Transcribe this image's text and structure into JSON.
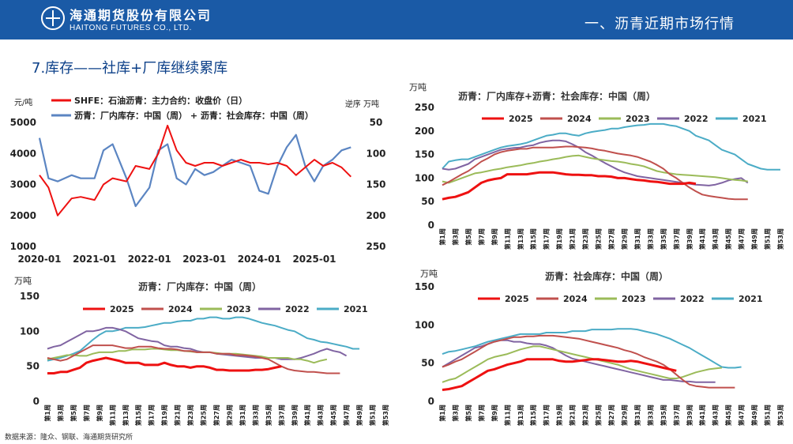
{
  "header": {
    "brand_cn": "海通期货股份有限公司",
    "brand_en": "HAITONG FUTURES CO., LTD.",
    "title": "一、沥青近期市场行情"
  },
  "section_title": "7.库存——社库+厂库继续累库",
  "source": "数据来源：隆众、钢联、海通期货研究所",
  "colors": {
    "y2025": "#ee1111",
    "y2024": "#c0504d",
    "y2023": "#9bbb59",
    "y2022": "#8064a2",
    "y2021": "#4bacc6",
    "shfe": "#ee1111",
    "inventory": "#5b85c2"
  },
  "week_ticks": [
    "第1周",
    "第3周",
    "第5周",
    "第7周",
    "第9周",
    "第11周",
    "第13周",
    "第15周",
    "第17周",
    "第19周",
    "第21周",
    "第23周",
    "第25周",
    "第27周",
    "第29周",
    "第31周",
    "第33周",
    "第35周",
    "第37周",
    "第39周",
    "第41周",
    "第43周",
    "第45周",
    "第47周",
    "第49周",
    "第51周",
    "第53周"
  ],
  "chart_data": [
    {
      "type": "line",
      "left_unit": "元/吨",
      "right_unit": "逆序 万吨",
      "series": [
        {
          "name": "SHFE：石油沥青：主力合约：收盘价（日）",
          "axis": "left",
          "x": [
            "2020-01",
            "2020-03",
            "2020-05",
            "2020-08",
            "2020-10",
            "2021-01",
            "2021-03",
            "2021-05",
            "2021-08",
            "2021-10",
            "2022-01",
            "2022-03",
            "2022-05",
            "2022-07",
            "2022-09",
            "2022-11",
            "2023-01",
            "2023-03",
            "2023-05",
            "2023-07",
            "2023-09",
            "2023-11",
            "2024-01",
            "2024-03",
            "2024-05",
            "2024-07",
            "2024-09",
            "2024-11",
            "2025-01",
            "2025-03",
            "2025-05",
            "2025-07",
            "2025-09"
          ],
          "values": [
            3300,
            2900,
            2000,
            2550,
            2600,
            2500,
            3000,
            3200,
            3100,
            3600,
            3500,
            4000,
            4900,
            4100,
            3700,
            3600,
            3700,
            3700,
            3600,
            3700,
            3800,
            3700,
            3700,
            3650,
            3700,
            3600,
            3300,
            3550,
            3800,
            3600,
            3700,
            3550,
            3250
          ]
        },
        {
          "name": "沥青：厂内库存：中国（周） + 沥青：社会库存：中国（周）",
          "axis": "right",
          "x": [
            "2020-01",
            "2020-03",
            "2020-05",
            "2020-08",
            "2020-10",
            "2021-01",
            "2021-03",
            "2021-05",
            "2021-08",
            "2021-10",
            "2022-01",
            "2022-03",
            "2022-05",
            "2022-07",
            "2022-09",
            "2022-11",
            "2023-01",
            "2023-03",
            "2023-05",
            "2023-07",
            "2023-09",
            "2023-11",
            "2024-01",
            "2024-03",
            "2024-05",
            "2024-07",
            "2024-09",
            "2024-11",
            "2025-01",
            "2025-03",
            "2025-05",
            "2025-07",
            "2025-09"
          ],
          "values": [
            75,
            140,
            145,
            135,
            140,
            140,
            95,
            85,
            140,
            185,
            155,
            95,
            85,
            140,
            150,
            125,
            135,
            130,
            120,
            110,
            115,
            120,
            160,
            165,
            120,
            90,
            70,
            120,
            145,
            120,
            110,
            95,
            90
          ]
        }
      ],
      "y_left": {
        "ticks": [
          1000,
          2000,
          3000,
          4000,
          5000
        ]
      },
      "y_right": {
        "ticks": [
          50,
          100,
          150,
          200,
          250
        ],
        "reversed": true
      },
      "x_ticks": [
        "2020-01",
        "2021-01",
        "2022-01",
        "2023-01",
        "2024-01",
        "2025-01"
      ]
    },
    {
      "type": "line",
      "title": "沥青：厂内库存+沥青：社会库存：中国（周）",
      "unit": "万吨",
      "y_ticks": [
        0,
        50,
        100,
        150,
        200,
        250
      ],
      "series": [
        {
          "name": "2025",
          "values": [
            55,
            58,
            60,
            65,
            70,
            80,
            90,
            95,
            98,
            100,
            108,
            108,
            108,
            108,
            110,
            112,
            112,
            112,
            110,
            108,
            107,
            107,
            106,
            106,
            104,
            104,
            103,
            100,
            100,
            98,
            96,
            95,
            93,
            92,
            90,
            88,
            88,
            88,
            90,
            88
          ]
        },
        {
          "name": "2024",
          "values": [
            85,
            92,
            100,
            108,
            115,
            125,
            135,
            142,
            150,
            155,
            158,
            160,
            162,
            162,
            165,
            165,
            165,
            165,
            166,
            167,
            167,
            166,
            165,
            163,
            160,
            158,
            155,
            152,
            150,
            148,
            145,
            140,
            135,
            128,
            120,
            108,
            100,
            90,
            80,
            72,
            65,
            62,
            60,
            58,
            56,
            55,
            55,
            55
          ]
        },
        {
          "name": "2023",
          "values": [
            93,
            90,
            95,
            100,
            105,
            110,
            112,
            115,
            118,
            120,
            123,
            125,
            127,
            130,
            132,
            135,
            137,
            140,
            142,
            145,
            147,
            148,
            145,
            142,
            140,
            138,
            136,
            135,
            133,
            130,
            128,
            125,
            120,
            115,
            112,
            110,
            108,
            107,
            106,
            105,
            104,
            103,
            102,
            100,
            98,
            96,
            95,
            93
          ]
        },
        {
          "name": "2022",
          "values": [
            120,
            118,
            120,
            125,
            130,
            140,
            145,
            150,
            155,
            160,
            162,
            164,
            165,
            168,
            170,
            175,
            178,
            180,
            180,
            178,
            172,
            165,
            155,
            148,
            140,
            132,
            125,
            118,
            112,
            108,
            104,
            102,
            100,
            98,
            96,
            94,
            92,
            90,
            88,
            86,
            85,
            84,
            86,
            90,
            95,
            98,
            100,
            90
          ]
        },
        {
          "name": "2021",
          "values": [
            120,
            135,
            138,
            140,
            140,
            145,
            150,
            155,
            160,
            165,
            168,
            170,
            172,
            175,
            180,
            185,
            190,
            192,
            195,
            195,
            192,
            190,
            195,
            198,
            200,
            202,
            205,
            205,
            208,
            210,
            212,
            213,
            215,
            215,
            215,
            212,
            210,
            205,
            200,
            190,
            185,
            180,
            170,
            160,
            155,
            150,
            140,
            130,
            125,
            120,
            118,
            118,
            118
          ]
        }
      ]
    },
    {
      "type": "line",
      "title": "沥青：厂内库存：中国（周）",
      "unit": "万吨",
      "y_ticks": [
        0,
        50,
        100,
        150
      ],
      "series": [
        {
          "name": "2025",
          "values": [
            40,
            40,
            42,
            42,
            45,
            48,
            55,
            58,
            60,
            62,
            60,
            58,
            55,
            55,
            55,
            52,
            52,
            52,
            55,
            52,
            50,
            50,
            48,
            50,
            50,
            48,
            45,
            45,
            44,
            44,
            44,
            44,
            45,
            45,
            46,
            48,
            50
          ]
        },
        {
          "name": "2024",
          "values": [
            62,
            60,
            58,
            60,
            65,
            70,
            75,
            80,
            80,
            80,
            80,
            78,
            76,
            76,
            78,
            78,
            78,
            76,
            75,
            75,
            74,
            72,
            72,
            70,
            70,
            70,
            68,
            68,
            68,
            66,
            66,
            65,
            64,
            62,
            60,
            55,
            50,
            46,
            44,
            43,
            42,
            42,
            41,
            40,
            40,
            40
          ]
        },
        {
          "name": "2023",
          "values": [
            60,
            62,
            64,
            66,
            66,
            65,
            65,
            68,
            70,
            70,
            70,
            72,
            72,
            74,
            74,
            74,
            75,
            75,
            74,
            73,
            73,
            72,
            71,
            70,
            70,
            70,
            69,
            68,
            68,
            68,
            67,
            66,
            65,
            64,
            62,
            62,
            62,
            62,
            60,
            60,
            58,
            55,
            58,
            60
          ]
        },
        {
          "name": "2022",
          "values": [
            75,
            78,
            80,
            85,
            90,
            95,
            100,
            100,
            102,
            105,
            105,
            103,
            100,
            95,
            90,
            88,
            86,
            85,
            80,
            78,
            78,
            76,
            75,
            72,
            70,
            70,
            68,
            67,
            66,
            65,
            64,
            63,
            62,
            62,
            62,
            62,
            60,
            60,
            60,
            62,
            65,
            68,
            72,
            75,
            72,
            70,
            65
          ]
        },
        {
          "name": "2021",
          "values": [
            58,
            60,
            62,
            65,
            68,
            72,
            80,
            88,
            95,
            100,
            100,
            102,
            105,
            105,
            105,
            106,
            108,
            110,
            112,
            112,
            114,
            115,
            115,
            118,
            118,
            120,
            120,
            118,
            118,
            120,
            120,
            118,
            115,
            112,
            110,
            108,
            105,
            102,
            100,
            95,
            90,
            88,
            85,
            84,
            82,
            80,
            78,
            75,
            75
          ]
        }
      ]
    },
    {
      "type": "line",
      "title": "沥青：社会库存：中国（周）",
      "unit": "万吨",
      "y_ticks": [
        0,
        50,
        100,
        150
      ],
      "series": [
        {
          "name": "2025",
          "values": [
            15,
            16,
            18,
            20,
            25,
            30,
            35,
            40,
            42,
            45,
            48,
            50,
            52,
            55,
            55,
            55,
            55,
            55,
            53,
            52,
            52,
            53,
            54,
            55,
            55,
            54,
            53,
            52,
            52,
            53,
            52,
            50,
            48,
            46,
            44,
            42,
            40
          ]
        },
        {
          "name": "2024",
          "values": [
            45,
            48,
            52,
            55,
            60,
            65,
            70,
            75,
            78,
            80,
            82,
            84,
            84,
            85,
            85,
            86,
            86,
            86,
            85,
            84,
            83,
            82,
            80,
            78,
            76,
            74,
            72,
            70,
            67,
            65,
            62,
            58,
            55,
            52,
            48,
            42,
            35,
            28,
            22,
            20,
            19,
            18,
            18,
            18,
            18,
            18
          ]
        },
        {
          "name": "2023",
          "values": [
            25,
            28,
            30,
            35,
            40,
            45,
            50,
            55,
            58,
            60,
            62,
            65,
            68,
            70,
            72,
            72,
            70,
            68,
            66,
            64,
            62,
            60,
            58,
            56,
            54,
            52,
            50,
            48,
            45,
            42,
            40,
            38,
            36,
            34,
            32,
            30,
            30,
            32,
            35,
            38,
            40,
            42,
            43,
            44
          ]
        },
        {
          "name": "2022",
          "values": [
            45,
            50,
            55,
            60,
            65,
            70,
            72,
            75,
            78,
            80,
            80,
            78,
            78,
            76,
            75,
            75,
            73,
            70,
            65,
            60,
            56,
            54,
            52,
            50,
            48,
            46,
            44,
            42,
            40,
            38,
            36,
            34,
            32,
            30,
            28,
            28,
            27,
            26,
            26,
            25,
            25,
            25,
            25
          ]
        },
        {
          "name": "2021",
          "values": [
            62,
            65,
            66,
            68,
            70,
            72,
            75,
            78,
            80,
            82,
            84,
            86,
            88,
            88,
            88,
            88,
            90,
            90,
            90,
            90,
            92,
            92,
            92,
            94,
            94,
            94,
            94,
            95,
            95,
            95,
            94,
            92,
            90,
            88,
            85,
            82,
            78,
            74,
            70,
            65,
            60,
            55,
            50,
            45,
            44,
            44,
            45
          ]
        }
      ]
    }
  ]
}
